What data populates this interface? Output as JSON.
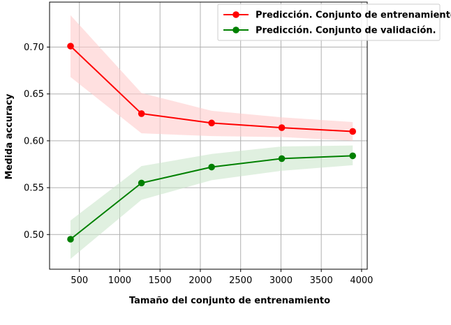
{
  "chart_data": {
    "type": "line",
    "title": "",
    "xlabel": "Tamaño del conjunto de entrenamiento",
    "ylabel": "Medida accuracy",
    "xlim": [
      130,
      4070
    ],
    "ylim": [
      0.463,
      0.748
    ],
    "x_ticks": [
      "500",
      "1000",
      "1500",
      "2000",
      "2500",
      "3000",
      "3500",
      "4000"
    ],
    "y_ticks": [
      "0.50",
      "0.55",
      "0.60",
      "0.65",
      "0.70"
    ],
    "grid": true,
    "legend_position": "top-right",
    "x": [
      390,
      1270,
      2140,
      3010,
      3890
    ],
    "series": [
      {
        "name": "Predicción. Conjunto de entrenamiento.",
        "color": "#ff0000",
        "band_color": "#ffcccc",
        "values": [
          0.701,
          0.629,
          0.619,
          0.614,
          0.61
        ],
        "upper": [
          0.734,
          0.651,
          0.632,
          0.625,
          0.62
        ],
        "lower": [
          0.668,
          0.608,
          0.605,
          0.604,
          0.6
        ]
      },
      {
        "name": "Predicción. Conjunto de validación.",
        "color": "#008000",
        "band_color": "#cce6cc",
        "values": [
          0.495,
          0.555,
          0.572,
          0.581,
          0.584
        ],
        "upper": [
          0.515,
          0.573,
          0.586,
          0.594,
          0.595
        ],
        "lower": [
          0.474,
          0.537,
          0.558,
          0.568,
          0.574
        ]
      }
    ]
  }
}
